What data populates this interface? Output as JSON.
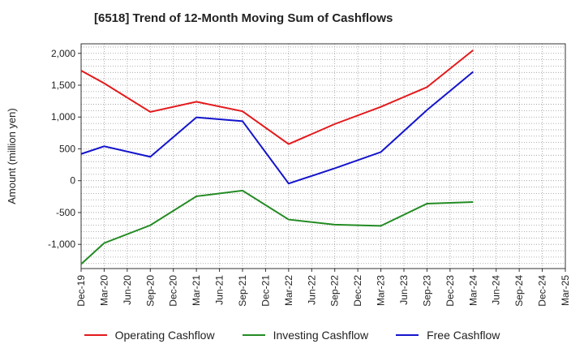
{
  "chart_data": {
    "type": "line",
    "title": "[6518]  Trend of 12-Month Moving Sum of Cashflows",
    "xlabel": "",
    "ylabel": "Amount (million yen)",
    "ylim": [
      -1380,
      2150
    ],
    "yticks": [
      -1000,
      -500,
      0,
      500,
      1000,
      1500,
      2000
    ],
    "ytick_labels": [
      "-1,000",
      "-500",
      "0",
      "500",
      "1,000",
      "1,500",
      "2,000"
    ],
    "categories": [
      "Dec-19",
      "Mar-20",
      "Jun-20",
      "Sep-20",
      "Dec-20",
      "Mar-21",
      "Jun-21",
      "Sep-21",
      "Dec-21",
      "Mar-22",
      "Jun-22",
      "Sep-22",
      "Dec-22",
      "Mar-23",
      "Jun-23",
      "Sep-23",
      "Dec-23",
      "Mar-24",
      "Jun-24",
      "Sep-24",
      "Dec-24",
      "Mar-25"
    ],
    "grid": true,
    "legend_position": "bottom",
    "series": [
      {
        "name": "Operating Cashflow",
        "color": "#e31a1c",
        "values": [
          1730,
          1530,
          null,
          1080,
          null,
          1240,
          null,
          1090,
          null,
          575,
          null,
          890,
          null,
          1160,
          null,
          1470,
          null,
          2050,
          null,
          null,
          null,
          null
        ]
      },
      {
        "name": "Investing Cashflow",
        "color": "#238b23",
        "values": [
          -1310,
          -980,
          null,
          -700,
          null,
          -245,
          null,
          -155,
          null,
          -610,
          null,
          -690,
          null,
          -710,
          null,
          -360,
          null,
          -335,
          null,
          null,
          null,
          null
        ]
      },
      {
        "name": "Free Cashflow",
        "color": "#1414cc",
        "values": [
          420,
          540,
          null,
          375,
          null,
          995,
          null,
          935,
          null,
          -45,
          null,
          195,
          null,
          450,
          null,
          1110,
          null,
          1710,
          null,
          null,
          null,
          null
        ]
      }
    ]
  }
}
